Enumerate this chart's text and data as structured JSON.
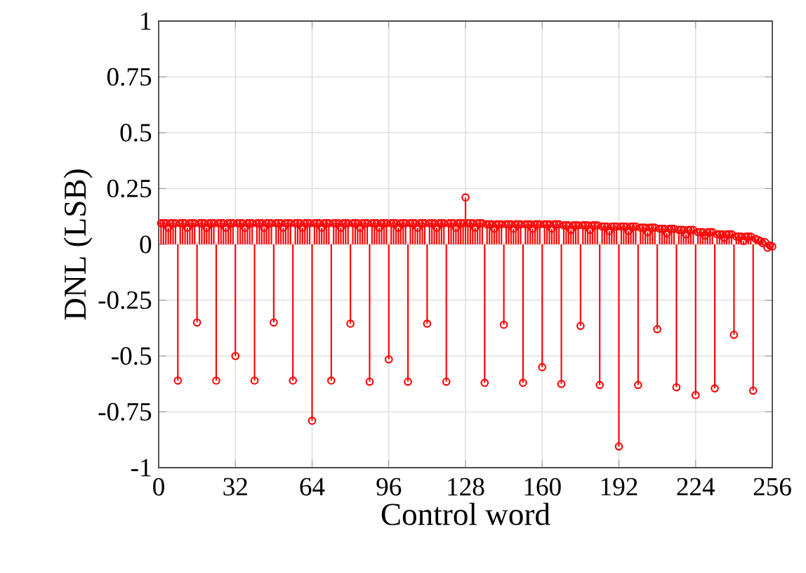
{
  "chart_data": {
    "type": "lollipop",
    "xlabel": "Control word",
    "ylabel": "DNL (LSB)",
    "x": [
      1,
      2,
      3,
      4,
      5,
      6,
      7,
      8,
      9,
      10,
      11,
      12,
      13,
      14,
      15,
      16,
      17,
      18,
      19,
      20,
      21,
      22,
      23,
      24,
      25,
      26,
      27,
      28,
      29,
      30,
      31,
      32,
      33,
      34,
      35,
      36,
      37,
      38,
      39,
      40,
      41,
      42,
      43,
      44,
      45,
      46,
      47,
      48,
      49,
      50,
      51,
      52,
      53,
      54,
      55,
      56,
      57,
      58,
      59,
      60,
      61,
      62,
      63,
      64,
      65,
      66,
      67,
      68,
      69,
      70,
      71,
      72,
      73,
      74,
      75,
      76,
      77,
      78,
      79,
      80,
      81,
      82,
      83,
      84,
      85,
      86,
      87,
      88,
      89,
      90,
      91,
      92,
      93,
      94,
      95,
      96,
      97,
      98,
      99,
      100,
      101,
      102,
      103,
      104,
      105,
      106,
      107,
      108,
      109,
      110,
      111,
      112,
      113,
      114,
      115,
      116,
      117,
      118,
      119,
      120,
      121,
      122,
      123,
      124,
      125,
      126,
      127,
      128,
      129,
      130,
      131,
      132,
      133,
      134,
      135,
      136,
      137,
      138,
      139,
      140,
      141,
      142,
      143,
      144,
      145,
      146,
      147,
      148,
      149,
      150,
      151,
      152,
      153,
      154,
      155,
      156,
      157,
      158,
      159,
      160,
      161,
      162,
      163,
      164,
      165,
      166,
      167,
      168,
      169,
      170,
      171,
      172,
      173,
      174,
      175,
      176,
      177,
      178,
      179,
      180,
      181,
      182,
      183,
      184,
      185,
      186,
      187,
      188,
      189,
      190,
      191,
      192,
      193,
      194,
      195,
      196,
      197,
      198,
      199,
      200,
      201,
      202,
      203,
      204,
      205,
      206,
      207,
      208,
      209,
      210,
      211,
      212,
      213,
      214,
      215,
      216,
      217,
      218,
      219,
      220,
      221,
      222,
      223,
      224,
      225,
      226,
      227,
      228,
      229,
      230,
      231,
      232,
      233,
      234,
      235,
      236,
      237,
      238,
      239,
      240,
      241,
      242,
      243,
      244,
      245,
      246,
      247,
      248,
      249,
      250,
      251,
      252,
      253,
      254,
      255,
      256
    ],
    "values": [
      0.095,
      0.095,
      0.095,
      0.075,
      0.095,
      0.095,
      0.095,
      -0.61,
      0.095,
      0.095,
      0.095,
      0.075,
      0.095,
      0.095,
      0.095,
      -0.35,
      0.095,
      0.095,
      0.095,
      0.075,
      0.095,
      0.095,
      0.095,
      -0.61,
      0.095,
      0.095,
      0.095,
      0.075,
      0.095,
      0.095,
      0.095,
      -0.5,
      0.095,
      0.095,
      0.095,
      0.075,
      0.095,
      0.095,
      0.095,
      -0.61,
      0.095,
      0.095,
      0.095,
      0.075,
      0.095,
      0.095,
      0.095,
      -0.35,
      0.095,
      0.095,
      0.095,
      0.075,
      0.095,
      0.095,
      0.095,
      -0.61,
      0.095,
      0.095,
      0.095,
      0.075,
      0.095,
      0.095,
      0.095,
      -0.79,
      0.095,
      0.095,
      0.095,
      0.075,
      0.095,
      0.095,
      0.095,
      -0.61,
      0.095,
      0.095,
      0.095,
      0.075,
      0.095,
      0.095,
      0.095,
      -0.355,
      0.095,
      0.095,
      0.095,
      0.075,
      0.095,
      0.095,
      0.095,
      -0.615,
      0.095,
      0.095,
      0.095,
      0.075,
      0.095,
      0.095,
      0.095,
      -0.515,
      0.095,
      0.095,
      0.095,
      0.075,
      0.095,
      0.095,
      0.095,
      -0.615,
      0.095,
      0.095,
      0.095,
      0.075,
      0.095,
      0.095,
      0.095,
      -0.355,
      0.095,
      0.095,
      0.095,
      0.075,
      0.095,
      0.095,
      0.095,
      -0.615,
      0.095,
      0.095,
      0.095,
      0.075,
      0.095,
      0.095,
      0.095,
      0.21,
      0.095,
      0.095,
      0.095,
      0.075,
      0.095,
      0.095,
      0.095,
      -0.62,
      0.09,
      0.09,
      0.09,
      0.07,
      0.09,
      0.09,
      0.09,
      -0.36,
      0.09,
      0.09,
      0.09,
      0.07,
      0.09,
      0.09,
      0.09,
      -0.62,
      0.09,
      0.09,
      0.09,
      0.07,
      0.09,
      0.09,
      0.09,
      -0.55,
      0.09,
      0.09,
      0.09,
      0.07,
      0.09,
      0.09,
      0.09,
      -0.625,
      0.085,
      0.085,
      0.085,
      0.065,
      0.085,
      0.085,
      0.085,
      -0.365,
      0.085,
      0.085,
      0.085,
      0.065,
      0.085,
      0.085,
      0.085,
      -0.63,
      0.08,
      0.08,
      0.08,
      0.06,
      0.08,
      0.08,
      0.08,
      -0.905,
      0.08,
      0.08,
      0.08,
      0.06,
      0.08,
      0.08,
      0.08,
      -0.63,
      0.075,
      0.075,
      0.075,
      0.055,
      0.075,
      0.075,
      0.075,
      -0.38,
      0.07,
      0.07,
      0.07,
      0.05,
      0.07,
      0.07,
      0.07,
      -0.64,
      0.065,
      0.065,
      0.065,
      0.045,
      0.065,
      0.065,
      0.065,
      -0.675,
      0.055,
      0.055,
      0.055,
      0.04,
      0.055,
      0.055,
      0.055,
      -0.645,
      0.045,
      0.045,
      0.045,
      0.03,
      0.045,
      0.045,
      0.045,
      -0.405,
      0.035,
      0.035,
      0.035,
      0.015,
      0.035,
      0.035,
      0.035,
      -0.655,
      0.025,
      0.02,
      0.015,
      0.005,
      0.01,
      -0.015,
      -0.005,
      -0.01
    ],
    "color": "#ff0000",
    "marker": "circle",
    "line_style": "solid",
    "grid": true,
    "xlim": [
      0,
      256
    ],
    "xticks": [
      0,
      32,
      64,
      96,
      128,
      160,
      192,
      224,
      256
    ],
    "ylim": [
      -1,
      1
    ],
    "yticks": [
      -1,
      -0.75,
      -0.5,
      -0.25,
      0,
      0.25,
      0.5,
      0.75,
      1
    ]
  }
}
